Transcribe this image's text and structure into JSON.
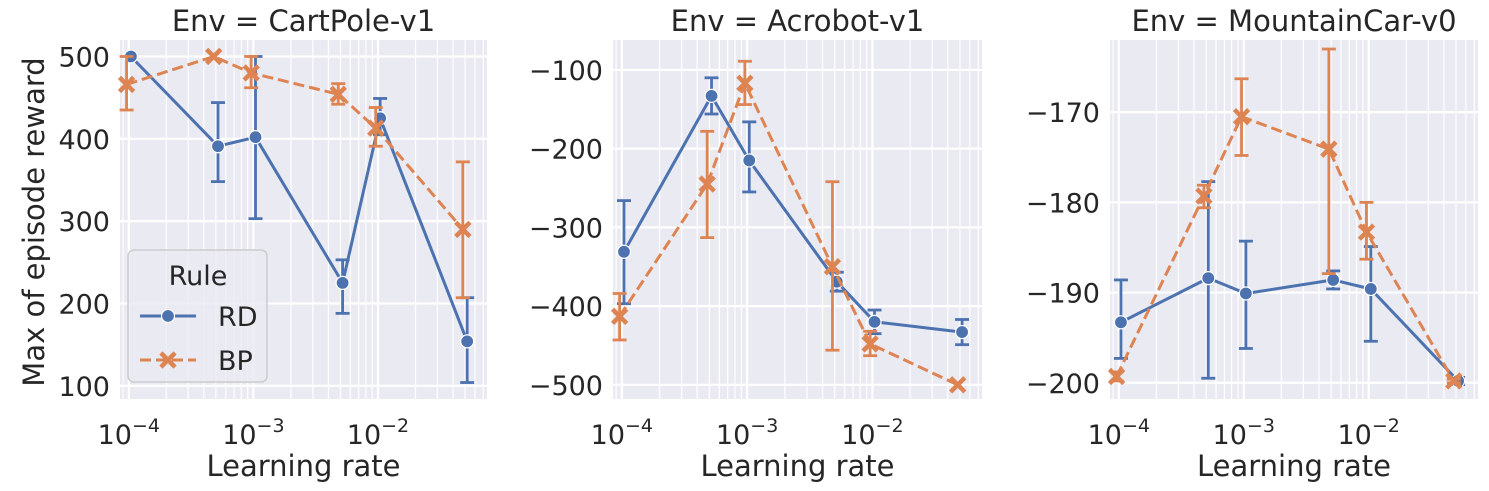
{
  "figure": {
    "ylabel": "Max of episode reward",
    "xlabel": "Learning rate"
  },
  "legend": {
    "title": "Rule",
    "entries": [
      {
        "name": "RD",
        "color": "#4c72b0",
        "marker": "circle",
        "dash": "solid"
      },
      {
        "name": "BP",
        "color": "#dd8452",
        "marker": "x",
        "dash": "dashed"
      }
    ],
    "placement": "lower-left of first panel"
  },
  "style": {
    "background": "#eaeaf2",
    "grid": "#ffffff",
    "text": "#262626"
  },
  "chart_data": [
    {
      "type": "line",
      "title": "Env = CartPole-v1",
      "xlabel": "Learning rate",
      "ylabel": "Max of episode reward",
      "xscale": "log",
      "xlim": [
        8.5e-05,
        0.075
      ],
      "ylim": [
        84,
        520
      ],
      "yticks": [
        100,
        200,
        300,
        400,
        500
      ],
      "ytick_labels": [
        "100",
        "200",
        "300",
        "400",
        "500"
      ],
      "xticks": [
        0.0001,
        0.001,
        0.01
      ],
      "xtick_labels": [
        "10^-4",
        "10^-3",
        "10^-2"
      ],
      "grid": true,
      "show_legend": true,
      "x": [
        0.0001,
        0.0005,
        0.001,
        0.005,
        0.01,
        0.05
      ],
      "series": [
        {
          "name": "RD",
          "values": [
            500,
            391,
            402,
            225,
            425,
            154
          ],
          "err_low": [
            500,
            348,
            303,
            188,
            405,
            104
          ],
          "err_high": [
            500,
            444,
            500,
            253,
            449,
            207
          ]
        },
        {
          "name": "BP",
          "values": [
            466,
            500,
            480,
            454,
            413,
            290
          ],
          "err_low": [
            435,
            500,
            462,
            442,
            391,
            207
          ],
          "err_high": [
            500,
            500,
            500,
            467,
            438,
            372
          ]
        }
      ]
    },
    {
      "type": "line",
      "title": "Env = Acrobot-v1",
      "xlabel": "Learning rate",
      "ylabel": "",
      "xscale": "log",
      "xlim": [
        8.5e-05,
        0.075
      ],
      "ylim": [
        -518,
        -62
      ],
      "yticks": [
        -500,
        -400,
        -300,
        -200,
        -100
      ],
      "ytick_labels": [
        "−500",
        "−400",
        "−300",
        "−200",
        "−100"
      ],
      "xticks": [
        0.0001,
        0.001,
        0.01
      ],
      "xtick_labels": [
        "10^-4",
        "10^-3",
        "10^-2"
      ],
      "grid": true,
      "show_legend": false,
      "x": [
        0.0001,
        0.0005,
        0.001,
        0.005,
        0.01,
        0.05
      ],
      "series": [
        {
          "name": "RD",
          "values": [
            -331,
            -133,
            -215,
            -369,
            -420,
            -433
          ],
          "err_low": [
            -397,
            -156,
            -255,
            -381,
            -435,
            -449
          ],
          "err_high": [
            -266,
            -110,
            -166,
            -357,
            -405,
            -417
          ]
        },
        {
          "name": "BP",
          "values": [
            -413,
            -245,
            -117,
            -350,
            -448,
            -500
          ],
          "err_low": [
            -443,
            -313,
            -144,
            -456,
            -463,
            -500
          ],
          "err_high": [
            -384,
            -178,
            -89,
            -242,
            -432,
            -500
          ]
        }
      ]
    },
    {
      "type": "line",
      "title": "Env = MountainCar-v0",
      "xlabel": "Learning rate",
      "ylabel": "",
      "xscale": "log",
      "xlim": [
        8.5e-05,
        0.075
      ],
      "ylim": [
        -201.8,
        -162.0
      ],
      "yticks": [
        -200,
        -190,
        -180,
        -170
      ],
      "ytick_labels": [
        "−200",
        "−190",
        "−180",
        "−170"
      ],
      "xticks": [
        0.0001,
        0.001,
        0.01
      ],
      "xtick_labels": [
        "10^-4",
        "10^-3",
        "10^-2"
      ],
      "grid": true,
      "show_legend": false,
      "x": [
        0.0001,
        0.0005,
        0.001,
        0.005,
        0.01,
        0.05
      ],
      "series": [
        {
          "name": "RD",
          "values": [
            -193.3,
            -188.4,
            -190.1,
            -188.6,
            -189.6,
            -199.8
          ],
          "err_low": [
            -197.3,
            -199.5,
            -196.2,
            -189.6,
            -195.4,
            -200.2
          ],
          "err_high": [
            -188.6,
            -177.7,
            -184.3,
            -187.6,
            -184.9,
            -199.4
          ]
        },
        {
          "name": "BP",
          "values": [
            -199.3,
            -179.3,
            -170.5,
            -174.1,
            -183.3,
            -199.8
          ],
          "err_low": [
            -199.8,
            -180.6,
            -174.8,
            -187.9,
            -186.3,
            -200.0
          ],
          "err_high": [
            -198.8,
            -178.1,
            -166.3,
            -163.0,
            -180.0,
            -199.6
          ]
        }
      ]
    }
  ]
}
